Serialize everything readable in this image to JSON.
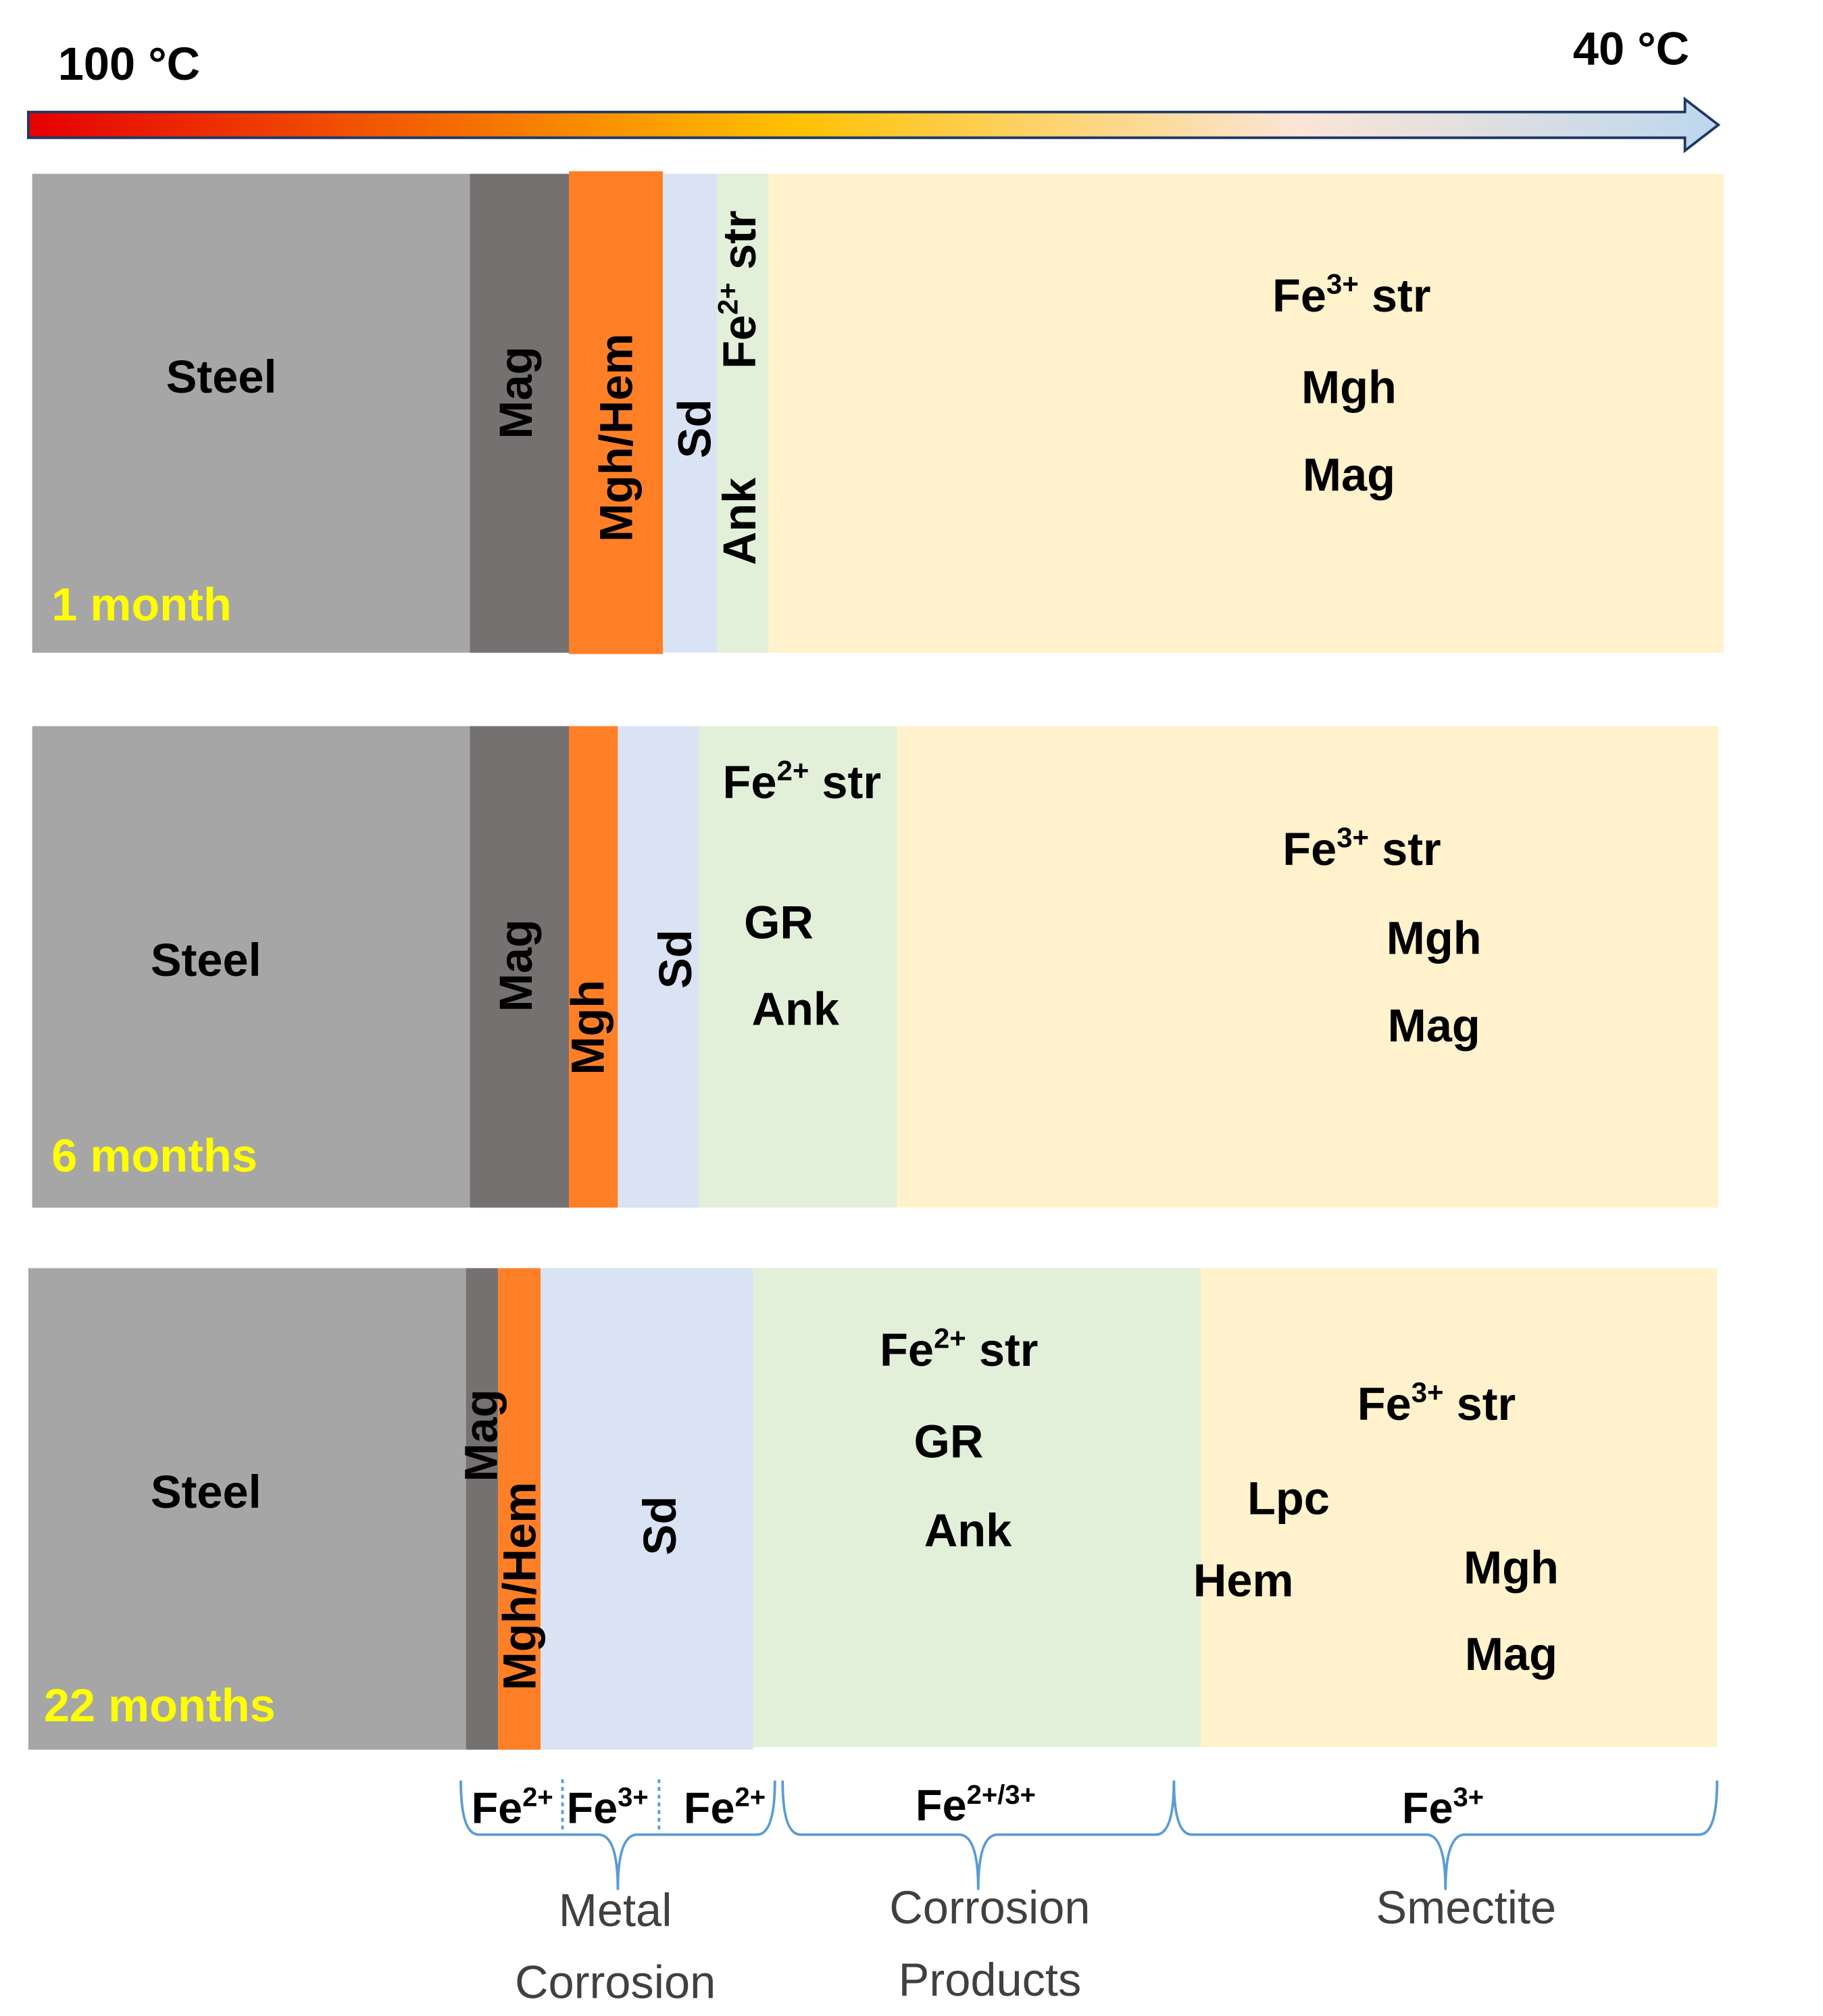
{
  "temperature": {
    "hot_label": "100 °C",
    "cold_label": "40 °C",
    "colors": [
      "#e60000",
      "#ffc000",
      "#fbe5d6",
      "#bdd7ee"
    ]
  },
  "colors": {
    "steel": "#a6a6a6",
    "magnetite": "#767171",
    "maghemite": "#ff7f27",
    "siderite": "#dae3f3",
    "fe2_zone": "#e2f0d9",
    "smectite": "#fff2cc",
    "duration_label": "#ffff00",
    "brace": "#5b9bd5"
  },
  "panels": [
    {
      "duration": "1 month",
      "steel": "Steel",
      "mag": "Mag",
      "mgh": "Mgh/Hem",
      "sd": "Sd",
      "fe2_vertical": [
        "Fe",
        "2+",
        " str"
      ],
      "ank": "Ank",
      "fe3": [
        "Fe",
        "3+",
        " str"
      ],
      "smectite_minerals": [
        "Mgh",
        "Mag"
      ]
    },
    {
      "duration": "6 months",
      "steel": "Steel",
      "mag": "Mag",
      "mgh": "Mgh",
      "sd": "Sd",
      "fe2": [
        "Fe",
        "2+",
        " str"
      ],
      "gr": "GR",
      "ank": "Ank",
      "fe3": [
        "Fe",
        "3+",
        " str"
      ],
      "smectite_minerals": [
        "Mgh",
        "Mag"
      ]
    },
    {
      "duration": "22 months",
      "steel": "Steel",
      "mag": "Mag",
      "mgh": "Mgh/Hem",
      "sd": "Sd",
      "fe2": [
        "Fe",
        "2+",
        " str"
      ],
      "gr": "GR",
      "ank": "Ank",
      "fe3": [
        "Fe",
        "3+",
        " str"
      ],
      "lpc": "Lpc",
      "hem": "Hem",
      "mgh2": "Mgh",
      "mag2": "Mag"
    }
  ],
  "brackets": {
    "metal": [
      [
        "Fe",
        "2+"
      ],
      [
        "Fe",
        "3+"
      ],
      [
        "Fe",
        "2+"
      ]
    ],
    "products": [
      "Fe",
      "2+/3+"
    ],
    "smectite": [
      "Fe",
      "3+"
    ]
  },
  "groups": {
    "metal_corrosion": [
      "Metal",
      "Corrosion"
    ],
    "corrosion_products": [
      "Corrosion",
      "Products"
    ],
    "smectite": "Smectite"
  }
}
